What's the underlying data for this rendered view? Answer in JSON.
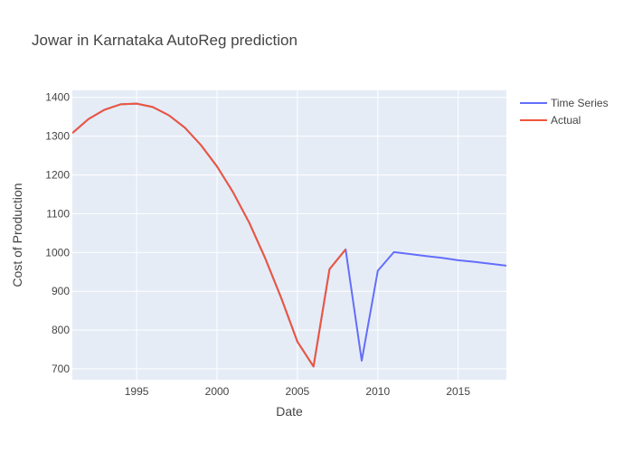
{
  "chart_data": {
    "type": "line",
    "title": "Jowar in Karnataka AutoReg prediction",
    "xlabel": "Date",
    "ylabel": "Cost of Production",
    "xlim": [
      1991,
      2018
    ],
    "ylim": [
      672,
      1418
    ],
    "x_ticks": [
      1995,
      2000,
      2005,
      2010,
      2015
    ],
    "y_ticks": [
      700,
      800,
      900,
      1000,
      1100,
      1200,
      1300,
      1400
    ],
    "grid": true,
    "legend_position": "top-right",
    "series": [
      {
        "name": "Time Series",
        "color": "#636efa",
        "x": [
          1991,
          1992,
          1993,
          1994,
          1995,
          1996,
          1997,
          1998,
          1999,
          2000,
          2001,
          2002,
          2003,
          2004,
          2005,
          2006,
          2007,
          2008,
          2009,
          2010,
          2011,
          2012,
          2013,
          2014,
          2015,
          2016,
          2017,
          2018
        ],
        "values": [
          1308,
          1344,
          1368,
          1382,
          1384,
          1375,
          1354,
          1322,
          1277,
          1222,
          1155,
          1077,
          985,
          882,
          770,
          706,
          957,
          1008,
          721,
          953,
          1001,
          996,
          991,
          986,
          980,
          976,
          971,
          966
        ]
      },
      {
        "name": "Actual",
        "color": "#ef553b",
        "x": [
          1991,
          1992,
          1993,
          1994,
          1995,
          1996,
          1997,
          1998,
          1999,
          2000,
          2001,
          2002,
          2003,
          2004,
          2005,
          2006,
          2007,
          2008
        ],
        "values": [
          1308,
          1344,
          1368,
          1382,
          1384,
          1375,
          1354,
          1322,
          1277,
          1222,
          1155,
          1077,
          985,
          882,
          770,
          706,
          957,
          1008
        ]
      }
    ]
  }
}
